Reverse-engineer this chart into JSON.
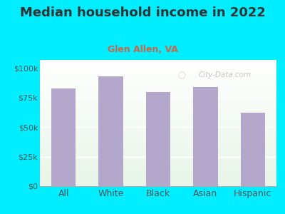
{
  "title": "Median household income in 2022",
  "subtitle": "Glen Allen, VA",
  "categories": [
    "All",
    "White",
    "Black",
    "Asian",
    "Hispanic"
  ],
  "values": [
    83000,
    93000,
    80000,
    84000,
    62000
  ],
  "bar_color": "#b3a8cc",
  "background_color": "#00eeff",
  "plot_bg_top": "#e8f5e8",
  "plot_bg_bottom": "#f8fff8",
  "title_color": "#333333",
  "subtitle_color": "#cc6644",
  "tick_label_color": "#555555",
  "ytick_labels": [
    "$0",
    "$25k",
    "$50k",
    "$75k",
    "$100k"
  ],
  "ytick_values": [
    0,
    25000,
    50000,
    75000,
    100000
  ],
  "ylim": [
    0,
    107000
  ],
  "watermark": "City-Data.com",
  "title_fontsize": 13,
  "subtitle_fontsize": 9,
  "tick_fontsize": 8,
  "xlabel_fontsize": 9
}
